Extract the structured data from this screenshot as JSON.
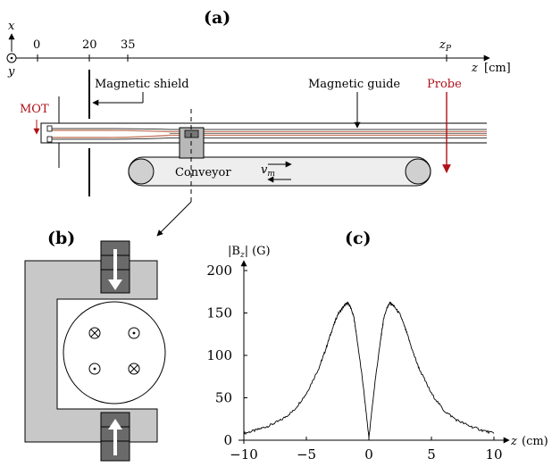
{
  "panel_labels": {
    "a": "(a)",
    "b": "(b)",
    "c": "(c)"
  },
  "axis_a": {
    "x_label": "x",
    "y_label": "y",
    "ticks": [
      "0",
      "20",
      "35"
    ],
    "zp_label": "z",
    "zp_sub": "P",
    "z_label": "z",
    "z_unit": "[cm]"
  },
  "labels": {
    "mot": "MOT",
    "magnetic_shield": "Magnetic shield",
    "magnetic_guide": "Magnetic guide",
    "probe": "Probe",
    "conveyor": "Conveyor",
    "vm_main": "v",
    "vm_sub": "m"
  },
  "colors": {
    "probe_red": "#b0101a",
    "guide_copper": "#c8836a",
    "gray_fill": "#c8c8c8",
    "dark_gray": "#6a6a6a"
  },
  "chart_data": {
    "type": "line",
    "title": "",
    "ylabel_main": "|B",
    "ylabel_sub": "z",
    "ylabel_rest": "|",
    "ylabel_unit": "(G)",
    "xlabel_main": "z",
    "xlabel_unit": "(cm)",
    "xlim": [
      -10,
      10
    ],
    "ylim": [
      0,
      200
    ],
    "x_ticks": [
      "−10",
      "−5",
      "0",
      "5",
      "10"
    ],
    "y_ticks": [
      "0",
      "50",
      "100",
      "150",
      "200"
    ],
    "series": [
      {
        "x": [
          -10,
          -9,
          -8,
          -7,
          -6,
          -5,
          -4,
          -3.5,
          -3,
          -2.5,
          -2,
          -1.7,
          -1.5,
          -1.2,
          -1,
          -0.5,
          0,
          0.5,
          1,
          1.2,
          1.5,
          1.7,
          2,
          2.5,
          3,
          3.5,
          4,
          5,
          6,
          7,
          8,
          9,
          10
        ],
        "y": [
          8,
          12,
          17,
          24,
          35,
          55,
          85,
          105,
          128,
          148,
          158,
          162,
          158,
          145,
          125,
          70,
          3,
          70,
          125,
          145,
          158,
          162,
          158,
          148,
          128,
          105,
          85,
          55,
          35,
          24,
          17,
          12,
          8
        ]
      }
    ]
  }
}
